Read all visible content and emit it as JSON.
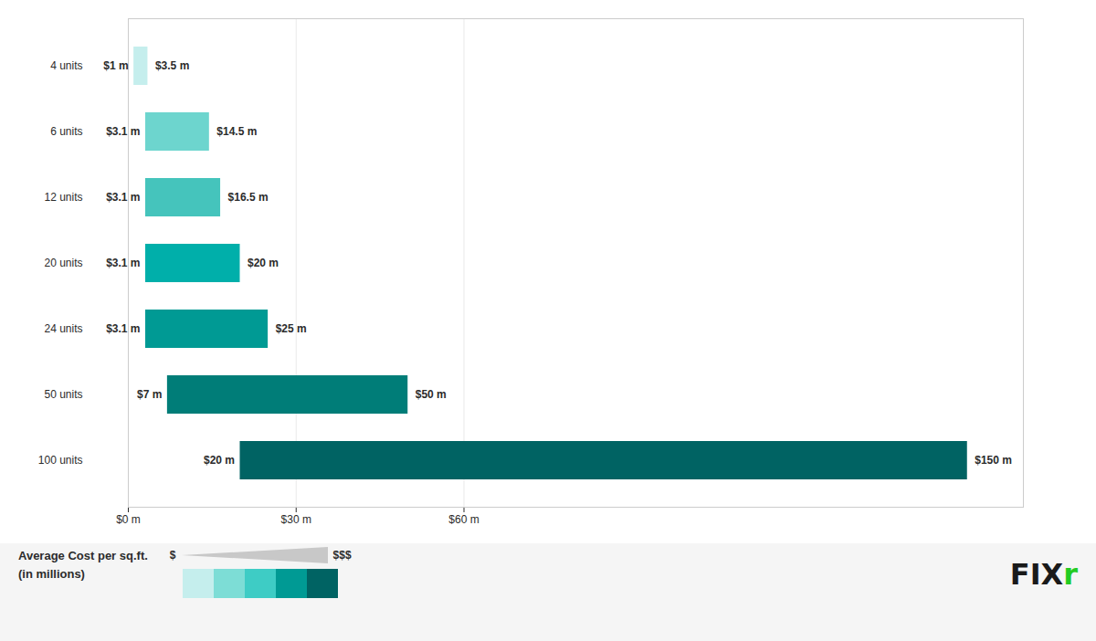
{
  "chart_data": {
    "type": "bar",
    "orientation": "horizontal",
    "categories": [
      "4 units",
      "6 units",
      "12 units",
      "20 units",
      "24 units",
      "50 units",
      "100 units"
    ],
    "values": [
      [
        1.0,
        3.5
      ],
      [
        3.1,
        14.5
      ],
      [
        3.1,
        16.5
      ],
      [
        3.1,
        20.0
      ],
      [
        3.1,
        25.0
      ],
      [
        7.0,
        50.0
      ],
      [
        20.0,
        150.0
      ]
    ],
    "value_labels": [
      [
        "$1 m",
        "$3.5 m"
      ],
      [
        "$3.1 m",
        "$14.5 m"
      ],
      [
        "$3.1 m",
        "$16.5 m"
      ],
      [
        "$3.1 m",
        "$20 m"
      ],
      [
        "$3.1 m",
        "$25 m"
      ],
      [
        "$7 m",
        "$50 m"
      ],
      [
        "$20 m",
        "$150 m"
      ]
    ],
    "colors": [
      "#c5eeed",
      "#6dd5ce",
      "#45c4bc",
      "#00afaa",
      "#009a94",
      "#007d78",
      "#006363"
    ],
    "xlim": [
      0,
      160
    ],
    "xticks": [
      {
        "value": 0,
        "label": "$0 m"
      },
      {
        "value": 30,
        "label": "$30 m"
      },
      {
        "value": 60,
        "label": "$60 m"
      }
    ],
    "grid": true,
    "data_labels": true,
    "cost_legend": {
      "title": [
        "Average Cost per sq.ft.",
        "(in millions)"
      ],
      "low": "$",
      "high": "$$$",
      "colors": [
        "#c5eeed",
        "#7dddd6",
        "#3eccc5",
        "#009a94",
        "#006363"
      ]
    },
    "annotations": [
      {
        "text": "FIX",
        "color": "#1a1a1a"
      },
      {
        "text": "r",
        "color": "#22cc22"
      }
    ]
  }
}
